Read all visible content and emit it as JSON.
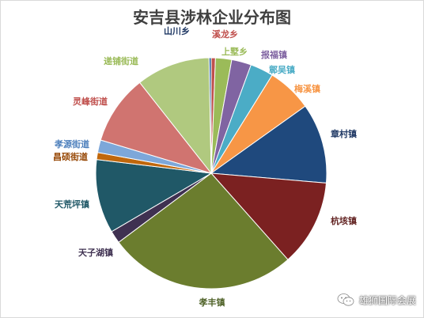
{
  "chart_data": {
    "type": "pie",
    "title": "安吉县涉林企业分布图",
    "slices": [
      {
        "label": "溪龙乡",
        "value": 0.6,
        "color": "#C0504D",
        "label_color": "#C0504D"
      },
      {
        "label": "上墅乡",
        "value": 2.3,
        "color": "#9BBB59",
        "label_color": "#9BBB59"
      },
      {
        "label": "报福镇",
        "value": 2.8,
        "color": "#8064A2",
        "label_color": "#8064A2"
      },
      {
        "label": "鄣吴镇",
        "value": 3.3,
        "color": "#4BACC6",
        "label_color": "#4BACC6"
      },
      {
        "label": "梅溪镇",
        "value": 6.4,
        "color": "#F79646",
        "label_color": "#F79646"
      },
      {
        "label": "章村镇",
        "value": 11.4,
        "color": "#1F497D",
        "label_color": "#1F3864"
      },
      {
        "label": "杭垓镇",
        "value": 12.3,
        "color": "#7B2121",
        "label_color": "#632423"
      },
      {
        "label": "孝丰镇",
        "value": 26.8,
        "color": "#6B7D2E",
        "label_color": "#4F6228"
      },
      {
        "label": "天子湖镇",
        "value": 1.8,
        "color": "#3F3151",
        "label_color": "#3F3151"
      },
      {
        "label": "天荒坪镇",
        "value": 10.5,
        "color": "#205867",
        "label_color": "#215968"
      },
      {
        "label": "昌硕街道",
        "value": 1.0,
        "color": "#C0670C",
        "label_color": "#974806"
      },
      {
        "label": "孝源街道",
        "value": 1.8,
        "color": "#7DA7D9",
        "label_color": "#4F81BD"
      },
      {
        "label": "灵峰街道",
        "value": 9.9,
        "color": "#D07470",
        "label_color": "#C0504D"
      },
      {
        "label": "递铺街道",
        "value": 10.5,
        "color": "#B0C97F",
        "label_color": "#9BBB59"
      },
      {
        "label": "山川乡",
        "value": 0.3,
        "color": "#1F5C99",
        "label_color": "#1F3864"
      }
    ]
  },
  "watermark": {
    "text": "雄狮国际会展",
    "icon": "wechat-icon"
  }
}
